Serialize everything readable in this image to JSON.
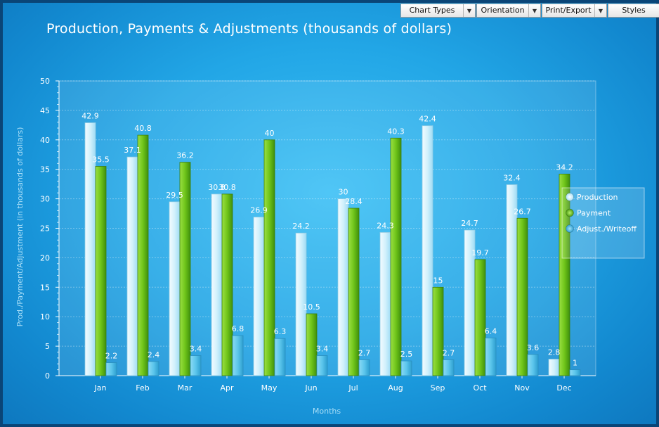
{
  "toolbar": {
    "chart_types": "Chart Types",
    "orientation": "Orientation",
    "print_export": "Print/Export",
    "styles": "Styles"
  },
  "chart_data": {
    "type": "bar",
    "title": "Production, Payments & Adjustments (thousands of dollars)",
    "xlabel": "Months",
    "ylabel": "Prod./Payment/Adjustment (in thousands of dollars)",
    "ylim": [
      0,
      50
    ],
    "yticks": [
      0,
      5,
      10,
      15,
      20,
      25,
      30,
      35,
      40,
      45,
      50
    ],
    "grid": true,
    "legend_position": "right",
    "categories": [
      "Jan",
      "Feb",
      "Mar",
      "Apr",
      "May",
      "Jun",
      "Jul",
      "Aug",
      "Sep",
      "Oct",
      "Nov",
      "Dec"
    ],
    "series": [
      {
        "name": "Production",
        "color": "#d2f1fc",
        "values": [
          42.9,
          37.1,
          29.5,
          30.8,
          26.9,
          24.2,
          30,
          24.3,
          42.4,
          24.7,
          32.4,
          2.8
        ]
      },
      {
        "name": "Payment",
        "color": "#6fc41a",
        "values": [
          35.5,
          40.8,
          36.2,
          30.8,
          40,
          10.5,
          28.4,
          40.3,
          15,
          19.7,
          26.7,
          34.2
        ]
      },
      {
        "name": "Adjust./Writeoff",
        "color": "#5cc6ec",
        "values": [
          2.2,
          2.4,
          3.4,
          6.8,
          6.3,
          3.4,
          2.7,
          2.5,
          2.7,
          6.4,
          3.6,
          1
        ]
      }
    ]
  }
}
